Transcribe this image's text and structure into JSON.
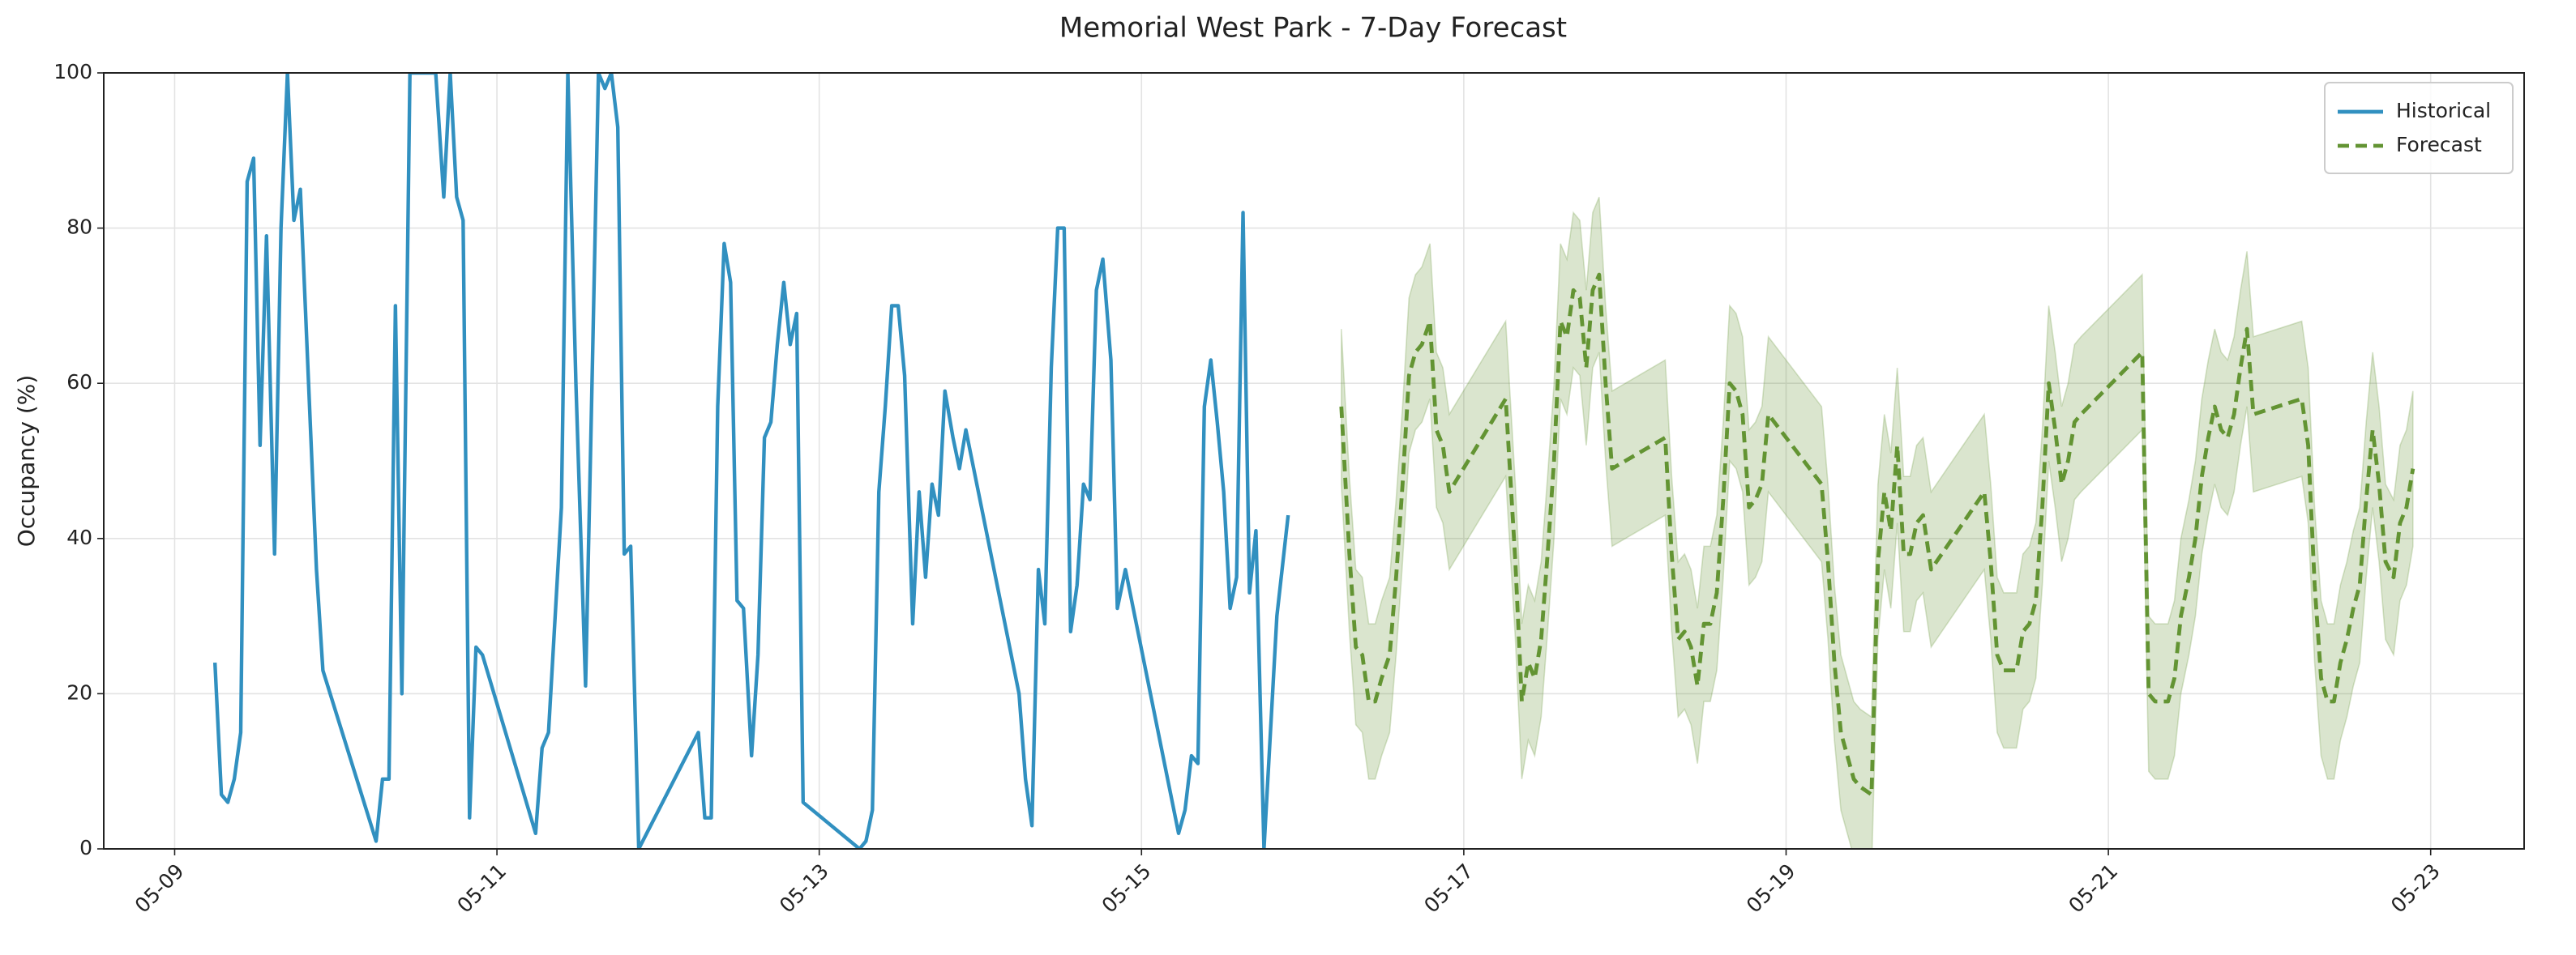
{
  "chart_data": {
    "type": "line",
    "title": "Memorial West Park - 7-Day Forecast",
    "ylabel": "Occupancy (%)",
    "xlim": [
      8.56,
      23.58
    ],
    "ylim": [
      0,
      100
    ],
    "xticks": [
      {
        "value": 9,
        "label": "05-09"
      },
      {
        "value": 11,
        "label": "05-11"
      },
      {
        "value": 13,
        "label": "05-13"
      },
      {
        "value": 15,
        "label": "05-15"
      },
      {
        "value": 17,
        "label": "05-17"
      },
      {
        "value": 19,
        "label": "05-19"
      },
      {
        "value": 21,
        "label": "05-21"
      },
      {
        "value": 23,
        "label": "05-23"
      }
    ],
    "yticks": [
      0,
      20,
      40,
      60,
      80,
      100
    ],
    "grid": true,
    "legend": "upper right",
    "series": [
      {
        "name": "Historical",
        "color": "#3190c0",
        "linestyle": "solid",
        "x": [
          9.25,
          9.29,
          9.33,
          9.37,
          9.41,
          9.45,
          9.49,
          9.53,
          9.57,
          9.62,
          9.66,
          9.7,
          9.74,
          9.78,
          9.88,
          9.92,
          10.25,
          10.29,
          10.33,
          10.37,
          10.41,
          10.46,
          10.58,
          10.62,
          10.67,
          10.71,
          10.75,
          10.79,
          10.83,
          10.87,
          10.91,
          11.24,
          11.28,
          11.32,
          11.4,
          11.44,
          11.49,
          11.55,
          11.59,
          11.63,
          11.67,
          11.71,
          11.75,
          11.79,
          11.83,
          11.88,
          12.25,
          12.29,
          12.33,
          12.37,
          12.41,
          12.45,
          12.49,
          12.53,
          12.58,
          12.62,
          12.66,
          12.7,
          12.74,
          12.78,
          12.82,
          12.86,
          12.9,
          13.25,
          13.29,
          13.33,
          13.37,
          13.41,
          13.45,
          13.49,
          13.53,
          13.58,
          13.62,
          13.66,
          13.7,
          13.74,
          13.78,
          13.83,
          13.87,
          13.91,
          14.24,
          14.28,
          14.32,
          14.36,
          14.4,
          14.44,
          14.48,
          14.52,
          14.56,
          14.6,
          14.64,
          14.68,
          14.72,
          14.76,
          14.81,
          14.85,
          14.9,
          15.23,
          15.27,
          15.31,
          15.35,
          15.39,
          15.43,
          15.47,
          15.51,
          15.55,
          15.59,
          15.63,
          15.67,
          15.71,
          15.76,
          15.8,
          15.84,
          15.91
        ],
        "values": [
          24,
          7,
          6,
          9,
          15,
          86,
          89,
          52,
          79,
          38,
          80,
          100,
          81,
          85,
          36,
          23,
          1,
          9,
          9,
          70,
          20,
          100,
          100,
          100,
          84,
          100,
          84,
          81,
          4,
          26,
          25,
          2,
          13,
          15,
          44,
          100,
          60,
          21,
          60,
          100,
          98,
          100,
          93,
          38,
          39,
          0,
          15,
          4,
          4,
          57,
          78,
          73,
          32,
          31,
          12,
          25,
          53,
          55,
          65,
          73,
          65,
          69,
          6,
          0,
          1,
          5,
          46,
          57,
          70,
          70,
          61,
          29,
          46,
          35,
          47,
          43,
          59,
          53,
          49,
          54,
          20,
          9,
          3,
          36,
          29,
          62,
          80,
          80,
          28,
          34,
          47,
          45,
          72,
          76,
          63,
          31,
          36,
          2,
          5,
          12,
          11,
          57,
          63,
          55,
          46,
          31,
          35,
          82,
          33,
          41,
          0,
          15,
          30,
          43
        ]
      },
      {
        "name": "Forecast",
        "color": "#639433",
        "linestyle": "dashed",
        "x": [
          16.24,
          16.29,
          16.33,
          16.37,
          16.41,
          16.45,
          16.49,
          16.54,
          16.58,
          16.62,
          16.66,
          16.7,
          16.74,
          16.79,
          16.83,
          16.87,
          16.91,
          17.26,
          17.32,
          17.36,
          17.4,
          17.44,
          17.48,
          17.52,
          17.56,
          17.6,
          17.64,
          17.68,
          17.72,
          17.76,
          17.8,
          17.84,
          17.88,
          17.92,
          18.25,
          18.29,
          18.33,
          18.37,
          18.41,
          18.45,
          18.49,
          18.53,
          18.57,
          18.61,
          18.65,
          18.69,
          18.73,
          18.77,
          18.81,
          18.85,
          18.89,
          19.22,
          19.26,
          19.3,
          19.34,
          19.38,
          19.42,
          19.46,
          19.53,
          19.57,
          19.61,
          19.65,
          19.69,
          19.73,
          19.77,
          19.81,
          19.85,
          19.9,
          20.23,
          20.27,
          20.31,
          20.35,
          20.39,
          20.43,
          20.47,
          20.51,
          20.55,
          20.59,
          20.63,
          20.67,
          20.71,
          20.75,
          20.79,
          20.83,
          21.21,
          21.25,
          21.29,
          21.33,
          21.37,
          21.41,
          21.45,
          21.5,
          21.54,
          21.58,
          21.62,
          21.66,
          21.7,
          21.74,
          21.78,
          21.82,
          21.86,
          21.9,
          22.2,
          22.24,
          22.28,
          22.32,
          22.36,
          22.4,
          22.44,
          22.48,
          22.52,
          22.56,
          22.6,
          22.64,
          22.68,
          22.72,
          22.77,
          22.81,
          22.85,
          22.89
        ],
        "values": [
          57,
          38,
          26,
          25,
          19,
          19,
          22,
          25,
          35,
          47,
          61,
          64,
          65,
          68,
          54,
          52,
          46,
          58,
          37,
          19,
          24,
          22,
          27,
          38,
          50,
          68,
          66,
          72,
          71,
          62,
          72,
          74,
          60,
          49,
          53,
          38,
          27,
          28,
          26,
          21,
          29,
          29,
          33,
          45,
          60,
          59,
          56,
          44,
          45,
          47,
          56,
          47,
          37,
          24,
          15,
          12,
          9,
          8,
          7,
          37,
          46,
          41,
          52,
          38,
          38,
          42,
          43,
          36,
          46,
          37,
          25,
          23,
          23,
          23,
          28,
          29,
          32,
          44,
          60,
          54,
          47,
          50,
          55,
          56,
          64,
          20,
          19,
          19,
          19,
          22,
          30,
          35,
          40,
          48,
          53,
          57,
          54,
          53,
          56,
          62,
          67,
          56,
          58,
          52,
          34,
          22,
          19,
          19,
          24,
          27,
          31,
          34,
          45,
          54,
          47,
          37,
          35,
          42,
          44,
          49
        ],
        "band_lower": [
          47,
          28,
          16,
          15,
          9,
          9,
          12,
          15,
          25,
          37,
          51,
          54,
          55,
          58,
          44,
          42,
          36,
          48,
          27,
          9,
          14,
          12,
          17,
          28,
          40,
          58,
          56,
          62,
          61,
          52,
          62,
          64,
          50,
          39,
          43,
          28,
          17,
          18,
          16,
          11,
          19,
          19,
          23,
          35,
          50,
          49,
          46,
          34,
          35,
          37,
          46,
          37,
          27,
          14,
          5,
          2,
          -1,
          -2,
          -3,
          27,
          36,
          31,
          42,
          28,
          28,
          32,
          33,
          26,
          36,
          27,
          15,
          13,
          13,
          13,
          18,
          19,
          22,
          34,
          50,
          44,
          37,
          40,
          45,
          46,
          54,
          10,
          9,
          9,
          9,
          12,
          20,
          25,
          30,
          38,
          43,
          47,
          44,
          43,
          46,
          52,
          57,
          46,
          48,
          42,
          24,
          12,
          9,
          9,
          14,
          17,
          21,
          24,
          35,
          44,
          37,
          27,
          25,
          32,
          34,
          39
        ],
        "band_upper": [
          67,
          48,
          36,
          35,
          29,
          29,
          32,
          35,
          45,
          57,
          71,
          74,
          75,
          78,
          64,
          62,
          56,
          68,
          47,
          29,
          34,
          32,
          37,
          48,
          60,
          78,
          76,
          82,
          81,
          72,
          82,
          84,
          70,
          59,
          63,
          48,
          37,
          38,
          36,
          31,
          39,
          39,
          43,
          55,
          70,
          69,
          66,
          54,
          55,
          57,
          66,
          57,
          47,
          34,
          25,
          22,
          19,
          18,
          17,
          47,
          56,
          51,
          62,
          48,
          48,
          52,
          53,
          46,
          56,
          47,
          35,
          33,
          33,
          33,
          38,
          39,
          42,
          54,
          70,
          64,
          57,
          60,
          65,
          66,
          74,
          30,
          29,
          29,
          29,
          32,
          40,
          45,
          50,
          58,
          63,
          67,
          64,
          63,
          66,
          72,
          77,
          66,
          68,
          62,
          44,
          32,
          29,
          29,
          34,
          37,
          41,
          44,
          55,
          64,
          57,
          47,
          45,
          52,
          54,
          59
        ]
      }
    ]
  }
}
